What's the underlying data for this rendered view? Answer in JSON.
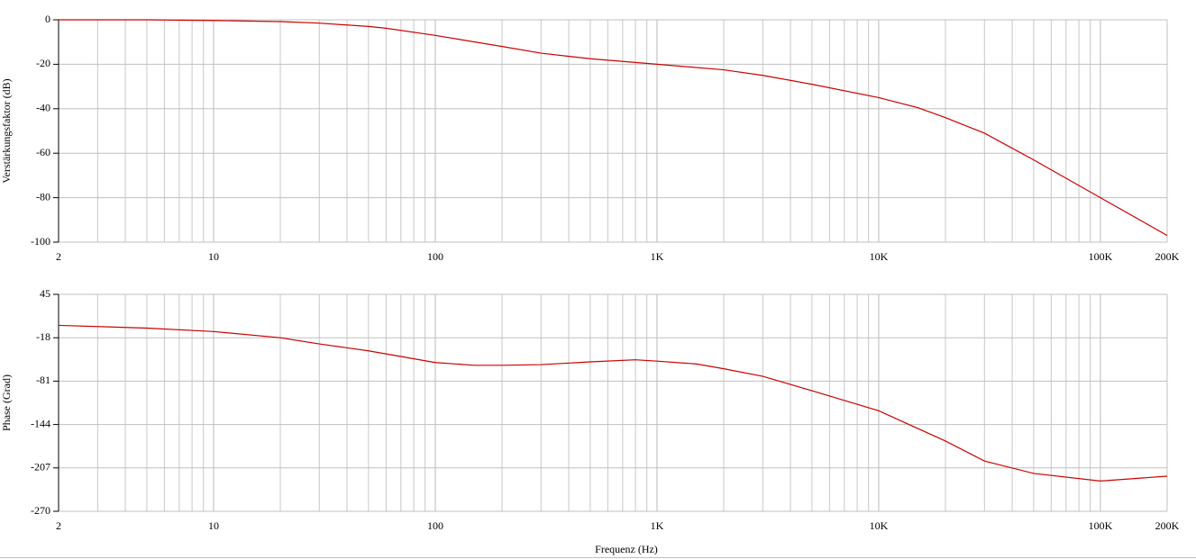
{
  "chart_data": [
    {
      "type": "line",
      "ylabel": "Verstärkungsfaktor (dB)",
      "xscale": "log",
      "grid": true,
      "x": [
        2,
        5,
        10,
        20,
        30,
        50,
        60,
        100,
        200,
        300,
        500,
        1000,
        2000,
        3000,
        5000,
        10000,
        15000,
        20000,
        30000,
        50000,
        100000,
        200000
      ],
      "series": [
        {
          "color": "#cc0000",
          "values": [
            0,
            0,
            -0.3,
            -0.8,
            -1.5,
            -3,
            -3.8,
            -7,
            -12,
            -15,
            -17.5,
            -20,
            -22.5,
            -25,
            -29,
            -35,
            -39.5,
            -44,
            -51,
            -63,
            -80,
            -97
          ]
        }
      ],
      "xlim": [
        2,
        200000
      ],
      "xticks": [
        2,
        10,
        100,
        {
          "value": 1000,
          "label": "1K"
        },
        {
          "value": 10000,
          "label": "10K"
        },
        {
          "value": 100000,
          "label": "100K"
        },
        {
          "value": 200000,
          "label": "200K"
        }
      ],
      "ylim": [
        -100,
        0
      ],
      "yticks": [
        -100,
        -80,
        -60,
        -40,
        -20,
        0
      ]
    },
    {
      "type": "line",
      "ylabel": "Phase (Grad)",
      "xlabel": "Frequenz (Hz)",
      "xscale": "log",
      "grid": true,
      "x": [
        2,
        5,
        10,
        20,
        30,
        50,
        100,
        150,
        200,
        300,
        500,
        800,
        1000,
        1500,
        2000,
        3000,
        5000,
        10000,
        20000,
        30000,
        50000,
        100000,
        200000
      ],
      "series": [
        {
          "color": "#cc0000",
          "values": [
            0,
            -4,
            -9,
            -18,
            -27,
            -37,
            -54,
            -58,
            -58,
            -57,
            -53,
            -50,
            -52,
            -56,
            -63,
            -74,
            -95,
            -124,
            -168,
            -197,
            -215,
            -226,
            -219
          ]
        }
      ],
      "xlim": [
        2,
        200000
      ],
      "xticks": [
        2,
        10,
        100,
        {
          "value": 1000,
          "label": "1K"
        },
        {
          "value": 10000,
          "label": "10K"
        },
        {
          "value": 100000,
          "label": "100K"
        },
        {
          "value": 200000,
          "label": "200K"
        }
      ],
      "ylim": [
        -270,
        45
      ],
      "yticks": [
        -270,
        -207,
        -144,
        -81,
        -18,
        45
      ]
    }
  ]
}
